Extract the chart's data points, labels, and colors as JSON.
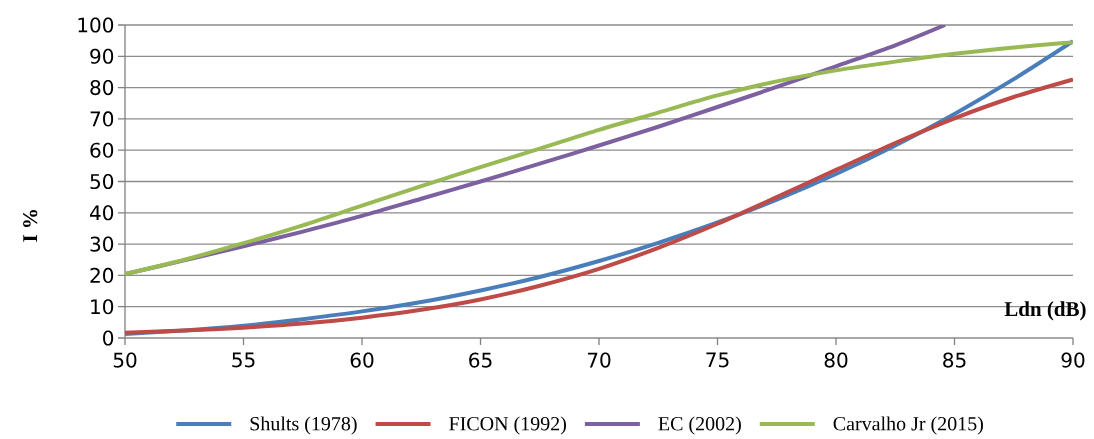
{
  "chart_data": {
    "type": "line",
    "xlabel": "Ldn (dB)",
    "ylabel": "I %",
    "xlim": [
      50,
      90
    ],
    "ylim": [
      0,
      100
    ],
    "xticks": [
      50,
      55,
      60,
      65,
      70,
      75,
      80,
      85,
      90
    ],
    "yticks": [
      0,
      10,
      20,
      30,
      40,
      50,
      60,
      70,
      80,
      90,
      100
    ],
    "grid": "y",
    "legend": "bottom",
    "marker": "none",
    "line_style": "solid",
    "series": [
      {
        "name": "Shults (1978)",
        "color": "#4a7ebb",
        "x": [
          50,
          52.5,
          55,
          57.5,
          60,
          62.5,
          65,
          67.5,
          70,
          72.5,
          75,
          77.5,
          80,
          82.5,
          85,
          87.5,
          90
        ],
        "values": [
          1.3,
          2.4,
          3.9,
          6,
          8.5,
          11.5,
          15.2,
          19.5,
          24.6,
          30.4,
          36.9,
          44.2,
          52.4,
          61.5,
          71.6,
          82.7,
          94.8
        ]
      },
      {
        "name": "FICON (1992)",
        "color": "#be4b48",
        "x": [
          50,
          52.5,
          55,
          57.5,
          60,
          62.5,
          65,
          67.5,
          70,
          72.5,
          75,
          77.5,
          80,
          82.5,
          85,
          87.5,
          90
        ],
        "values": [
          1.7,
          2.4,
          3.3,
          4.6,
          6.5,
          9,
          12.3,
          16.7,
          22.1,
          28.8,
          36.5,
          45,
          53.7,
          62.3,
          70.2,
          77,
          82.6
        ]
      },
      {
        "name": "EC (2002)",
        "color": "#7d60a0",
        "x": [
          50,
          52.5,
          55,
          57.5,
          60,
          62.5,
          65,
          67.5,
          70,
          72.5,
          75,
          77.5,
          80,
          82.5,
          84.6
        ],
        "values": [
          20.4,
          24.8,
          29.3,
          34,
          39,
          44.5,
          50,
          55.7,
          61.5,
          67.5,
          73.8,
          80.2,
          86.8,
          93.5,
          100
        ]
      },
      {
        "name": "Carvalho Jr (2015)",
        "color": "#98b954",
        "x": [
          50,
          52.5,
          55,
          57.5,
          60,
          62.5,
          65,
          67.5,
          70,
          72.5,
          75,
          77.5,
          80,
          82.5,
          85,
          87.5,
          90
        ],
        "values": [
          20.4,
          25,
          30.3,
          36,
          42.3,
          48.5,
          54.6,
          60.5,
          66.5,
          72,
          77.5,
          82,
          85.5,
          88.3,
          90.8,
          92.8,
          94.5
        ]
      }
    ]
  }
}
